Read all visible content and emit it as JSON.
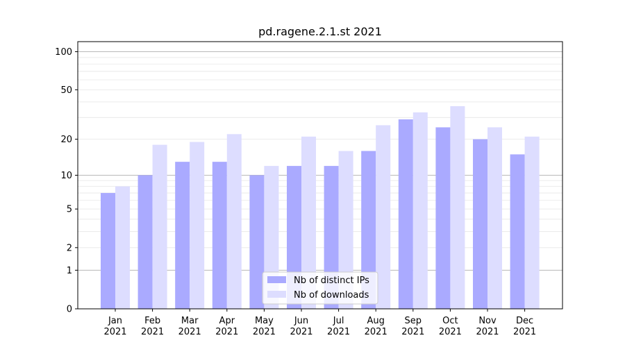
{
  "chart_data": {
    "type": "bar",
    "title": "pd.ragene.2.1.st 2021",
    "xlabel": "",
    "ylabel": "",
    "scale": "log1p",
    "ylim": [
      0,
      120
    ],
    "yticks": [
      0,
      1,
      2,
      5,
      10,
      20,
      50,
      100
    ],
    "ytick_labels": [
      "0",
      "1",
      "2",
      "5",
      "10",
      "20",
      "50",
      "100"
    ],
    "categories": [
      {
        "month": "Jan",
        "year": "2021"
      },
      {
        "month": "Feb",
        "year": "2021"
      },
      {
        "month": "Mar",
        "year": "2021"
      },
      {
        "month": "Apr",
        "year": "2021"
      },
      {
        "month": "May",
        "year": "2021"
      },
      {
        "month": "Jun",
        "year": "2021"
      },
      {
        "month": "Jul",
        "year": "2021"
      },
      {
        "month": "Aug",
        "year": "2021"
      },
      {
        "month": "Sep",
        "year": "2021"
      },
      {
        "month": "Oct",
        "year": "2021"
      },
      {
        "month": "Nov",
        "year": "2021"
      },
      {
        "month": "Dec",
        "year": "2021"
      }
    ],
    "series": [
      {
        "name": "Nb of distinct IPs",
        "color": "#aaaaff",
        "values": [
          7,
          10,
          13,
          13,
          10,
          12,
          12,
          16,
          29,
          25,
          20,
          15
        ]
      },
      {
        "name": "Nb of downloads",
        "color": "#ddddff",
        "values": [
          8,
          18,
          19,
          22,
          12,
          21,
          16,
          26,
          33,
          37,
          25,
          21
        ]
      }
    ],
    "grid": true,
    "legend_position": "lower-center"
  }
}
